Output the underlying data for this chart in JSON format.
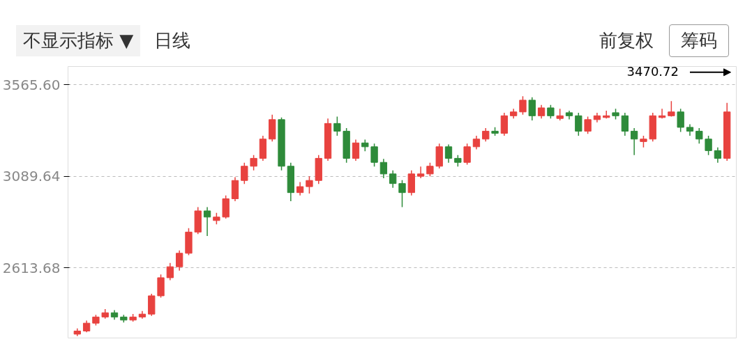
{
  "chart_data": {
    "type": "candlestick",
    "categories": [
      null,
      null,
      null,
      null,
      null,
      null,
      null,
      null,
      null,
      null,
      null,
      null,
      null,
      null,
      null,
      null,
      null,
      null,
      null,
      null,
      null,
      null,
      null,
      null,
      null,
      null,
      null,
      null,
      null,
      null,
      null,
      null,
      null,
      null,
      null,
      null,
      null,
      null,
      null,
      null,
      null,
      null,
      null,
      null,
      null,
      null,
      null,
      null,
      null,
      null,
      null,
      null,
      null,
      null,
      null,
      null,
      null,
      null,
      null,
      null,
      null,
      null,
      null,
      null,
      null,
      null,
      null,
      null,
      null,
      null,
      null
    ],
    "ohlc": [
      [
        2270,
        2300,
        2260,
        2286
      ],
      [
        2286,
        2340,
        2280,
        2327
      ],
      [
        2327,
        2370,
        2315,
        2359
      ],
      [
        2359,
        2400,
        2350,
        2381
      ],
      [
        2381,
        2395,
        2345,
        2359
      ],
      [
        2359,
        2370,
        2330,
        2343
      ],
      [
        2343,
        2375,
        2335,
        2359
      ],
      [
        2359,
        2390,
        2350,
        2374
      ],
      [
        2374,
        2480,
        2365,
        2469
      ],
      [
        2469,
        2580,
        2460,
        2563
      ],
      [
        2563,
        2640,
        2550,
        2620
      ],
      [
        2620,
        2705,
        2600,
        2690
      ],
      [
        2690,
        2820,
        2680,
        2800
      ],
      [
        2800,
        2930,
        2790,
        2910
      ],
      [
        2910,
        2930,
        2780,
        2878
      ],
      [
        2860,
        2900,
        2840,
        2878
      ],
      [
        2878,
        2990,
        2870,
        2973
      ],
      [
        2973,
        3085,
        2960,
        3068
      ],
      [
        3068,
        3160,
        3050,
        3142
      ],
      [
        3142,
        3200,
        3120,
        3183
      ],
      [
        3183,
        3300,
        3170,
        3283
      ],
      [
        3283,
        3410,
        3270,
        3384
      ],
      [
        3384,
        3395,
        3120,
        3142
      ],
      [
        3142,
        3160,
        2960,
        3005
      ],
      [
        3005,
        3060,
        2990,
        3036
      ],
      [
        3036,
        3090,
        3000,
        3068
      ],
      [
        3068,
        3200,
        3050,
        3183
      ],
      [
        3183,
        3390,
        3170,
        3364
      ],
      [
        3364,
        3400,
        3300,
        3324
      ],
      [
        3324,
        3340,
        3160,
        3183
      ],
      [
        3183,
        3280,
        3170,
        3263
      ],
      [
        3263,
        3280,
        3220,
        3243
      ],
      [
        3243,
        3260,
        3140,
        3162
      ],
      [
        3162,
        3180,
        3080,
        3102
      ],
      [
        3102,
        3120,
        3030,
        3052
      ],
      [
        3052,
        3070,
        2930,
        3005
      ],
      [
        3005,
        3120,
        2990,
        3102
      ],
      [
        3090,
        3140,
        3080,
        3102
      ],
      [
        3102,
        3160,
        3090,
        3142
      ],
      [
        3142,
        3260,
        3130,
        3243
      ],
      [
        3243,
        3255,
        3160,
        3183
      ],
      [
        3183,
        3200,
        3140,
        3162
      ],
      [
        3162,
        3260,
        3150,
        3243
      ],
      [
        3243,
        3300,
        3230,
        3283
      ],
      [
        3283,
        3340,
        3270,
        3324
      ],
      [
        3324,
        3345,
        3300,
        3313
      ],
      [
        3313,
        3420,
        3300,
        3404
      ],
      [
        3404,
        3440,
        3390,
        3424
      ],
      [
        3424,
        3505,
        3410,
        3485
      ],
      [
        3485,
        3500,
        3380,
        3404
      ],
      [
        3404,
        3460,
        3390,
        3445
      ],
      [
        3445,
        3460,
        3390,
        3404
      ],
      [
        3390,
        3440,
        3380,
        3404
      ],
      [
        3420,
        3430,
        3385,
        3404
      ],
      [
        3404,
        3420,
        3300,
        3324
      ],
      [
        3324,
        3400,
        3310,
        3384
      ],
      [
        3384,
        3420,
        3370,
        3404
      ],
      [
        3395,
        3430,
        3390,
        3404
      ],
      [
        3420,
        3440,
        3385,
        3404
      ],
      [
        3404,
        3420,
        3300,
        3324
      ],
      [
        3324,
        3340,
        3200,
        3283
      ],
      [
        3270,
        3300,
        3240,
        3283
      ],
      [
        3283,
        3420,
        3270,
        3404
      ],
      [
        3395,
        3440,
        3390,
        3404
      ],
      [
        3404,
        3480,
        3400,
        3424
      ],
      [
        3424,
        3440,
        3320,
        3344
      ],
      [
        3344,
        3360,
        3300,
        3324
      ],
      [
        3324,
        3340,
        3260,
        3283
      ],
      [
        3283,
        3300,
        3200,
        3223
      ],
      [
        3223,
        3240,
        3160,
        3183
      ],
      [
        3183,
        3470.72,
        3170,
        3424
      ]
    ],
    "colors": [
      "#e8423f",
      "#e8423f",
      "#e8423f",
      "#e8423f",
      "#2e8b3a",
      "#2e8b3a",
      "#e8423f",
      "#e8423f",
      "#e8423f",
      "#e8423f",
      "#e8423f",
      "#e8423f",
      "#e8423f",
      "#e8423f",
      "#2e8b3a",
      "#e8423f",
      "#e8423f",
      "#e8423f",
      "#e8423f",
      "#e8423f",
      "#e8423f",
      "#e8423f",
      "#2e8b3a",
      "#2e8b3a",
      "#e8423f",
      "#e8423f",
      "#e8423f",
      "#e8423f",
      "#2e8b3a",
      "#2e8b3a",
      "#e8423f",
      "#2e8b3a",
      "#2e8b3a",
      "#2e8b3a",
      "#2e8b3a",
      "#2e8b3a",
      "#e8423f",
      "#e8423f",
      "#e8423f",
      "#e8423f",
      "#2e8b3a",
      "#2e8b3a",
      "#e8423f",
      "#e8423f",
      "#e8423f",
      "#2e8b3a",
      "#e8423f",
      "#e8423f",
      "#e8423f",
      "#2e8b3a",
      "#e8423f",
      "#2e8b3a",
      "#e8423f",
      "#2e8b3a",
      "#2e8b3a",
      "#e8423f",
      "#e8423f",
      "#e8423f",
      "#2e8b3a",
      "#2e8b3a",
      "#2e8b3a",
      "#e8423f",
      "#e8423f",
      "#e8423f",
      "#e8423f",
      "#2e8b3a",
      "#2e8b3a",
      "#2e8b3a",
      "#2e8b3a",
      "#2e8b3a",
      "#e8423f"
    ],
    "ylim": [
      2250,
      3660
    ],
    "yticks": [
      2613.68,
      3089.64,
      {
        "value": 3565.6,
        "label": "3565.60"
      }
    ],
    "grid": "y",
    "annotations": [
      "不显示指标 ▼",
      "日线",
      "前复权",
      "筹码",
      "3470.72"
    ]
  }
}
